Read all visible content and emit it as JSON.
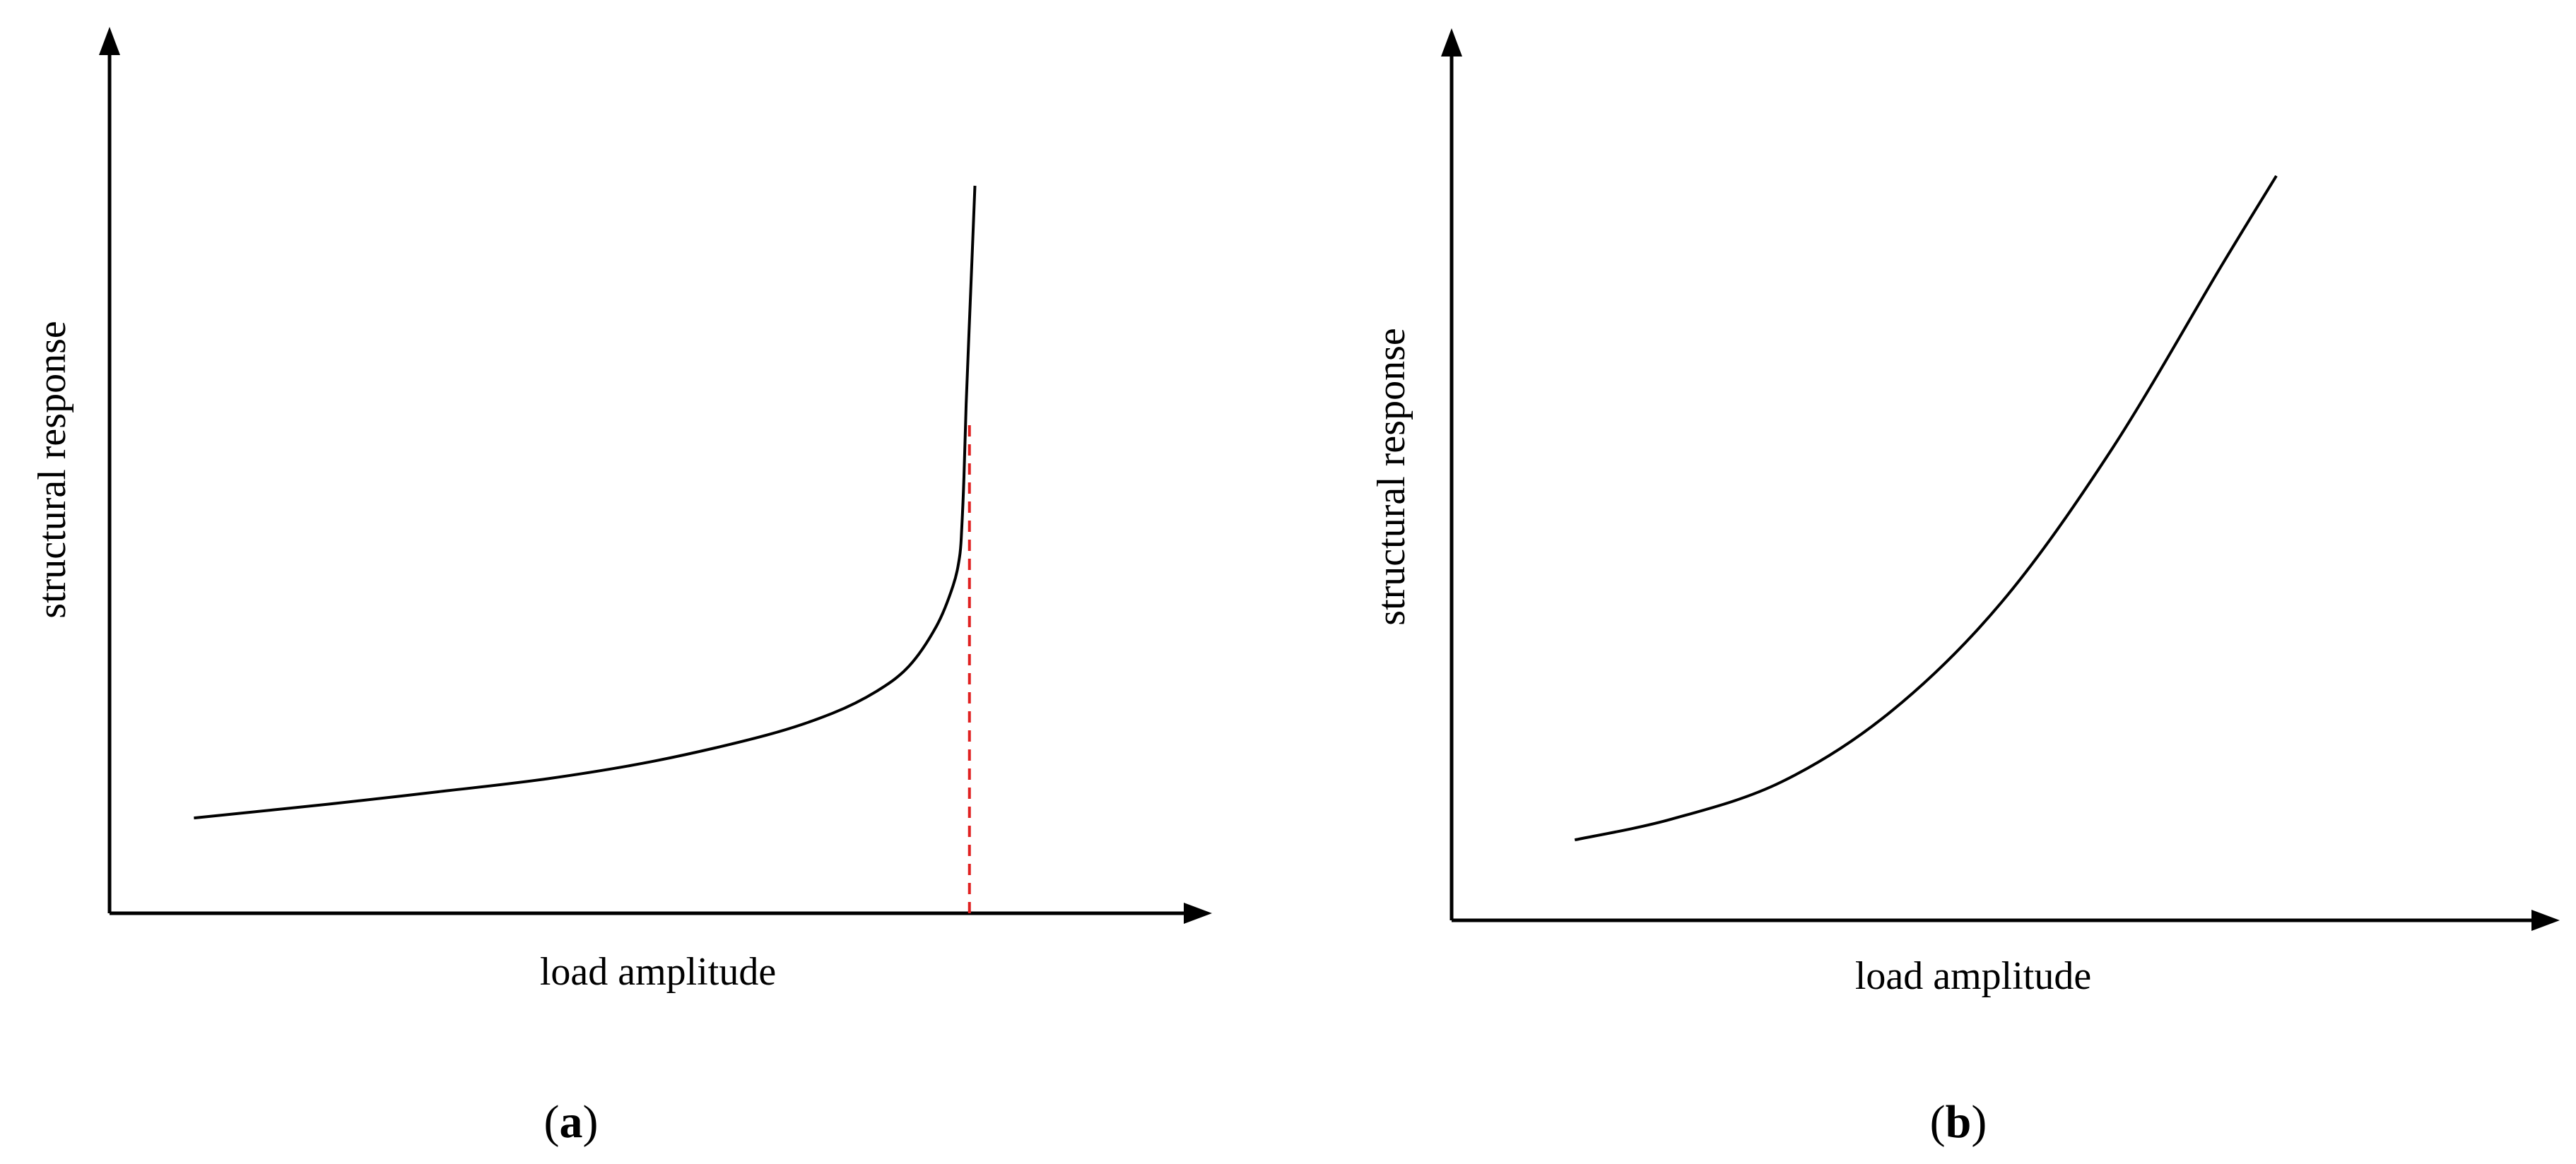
{
  "chart_data": [
    {
      "type": "line",
      "panel_label": "a",
      "xlabel": "load amplitude",
      "ylabel": "structural response",
      "grid": false,
      "xlim": [
        0,
        1
      ],
      "ylim": [
        0,
        1
      ],
      "series": [
        {
          "color": "#000000",
          "x": [
            0.077,
            0.2,
            0.3,
            0.4,
            0.5,
            0.6,
            0.66,
            0.7,
            0.73,
            0.755,
            0.77,
            0.776,
            0.778,
            0.78,
            0.782,
            0.786,
            0.79
          ],
          "y": [
            0.131,
            0.15,
            0.167,
            0.185,
            0.21,
            0.245,
            0.275,
            0.305,
            0.34,
            0.395,
            0.45,
            0.49,
            0.53,
            0.6,
            0.7,
            0.85,
            1.0
          ]
        }
      ],
      "annotations": [
        {
          "type": "vline",
          "x": 0.785,
          "color": "#e02020",
          "style": "dashed"
        }
      ]
    },
    {
      "type": "line",
      "panel_label": "b",
      "xlabel": "load amplitude",
      "ylabel": "structural response",
      "grid": false,
      "xlim": [
        0,
        1
      ],
      "ylim": [
        0,
        1
      ],
      "series": [
        {
          "color": "#000000",
          "x": [
            0.112,
            0.2,
            0.3,
            0.4,
            0.5,
            0.6,
            0.7,
            0.75,
            0.78
          ],
          "y": [
            0.108,
            0.136,
            0.186,
            0.281,
            0.427,
            0.632,
            0.879,
            1.0,
            1.0
          ]
        }
      ]
    }
  ],
  "panels": [
    {
      "open": "(",
      "letter": "a",
      "close": ")"
    },
    {
      "open": "(",
      "letter": "b",
      "close": ")"
    }
  ],
  "colors": {
    "axis": "#000000",
    "curve": "#000000",
    "threshold": "#e02020"
  }
}
